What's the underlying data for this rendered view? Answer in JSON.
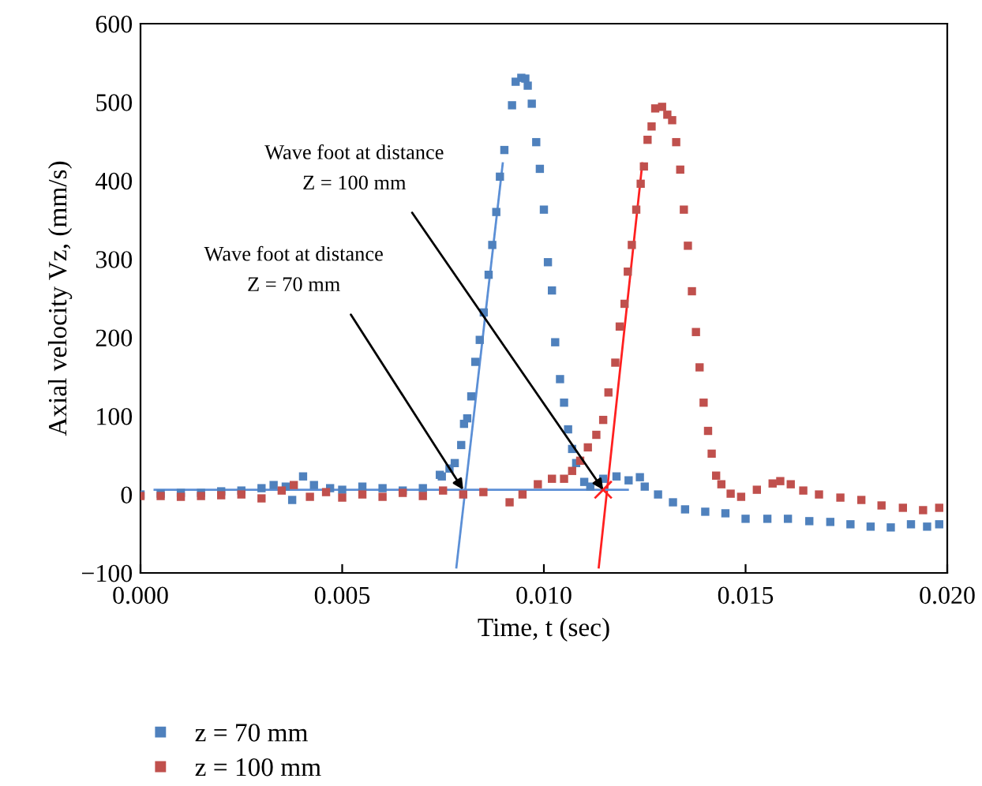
{
  "chart_data": {
    "type": "scatter",
    "xlabel": "Time, t (sec)",
    "ylabel": "Axial velocity Vz, (mm/s)",
    "xlim": [
      0,
      0.02
    ],
    "ylim": [
      -100,
      600
    ],
    "xticks": [
      {
        "value": 0,
        "label": "0.000"
      },
      {
        "value": 0.005,
        "label": "0.005"
      },
      {
        "value": 0.01,
        "label": "0.010"
      },
      {
        "value": 0.015,
        "label": "0.015"
      },
      {
        "value": 0.02,
        "label": "0.020"
      }
    ],
    "yticks": [
      {
        "value": -100,
        "label": "−100"
      },
      0,
      100,
      200,
      300,
      400,
      500,
      600
    ],
    "grid": false,
    "legend": "bottom left",
    "marker": "square",
    "series": [
      {
        "name": "z = 70 mm",
        "color": "#4f81bd",
        "x": [
          0.0,
          0.0005,
          0.001,
          0.0015,
          0.002,
          0.0025,
          0.003,
          0.0033,
          0.0036,
          0.00376,
          0.00403,
          0.0043,
          0.0047,
          0.005,
          0.0055,
          0.006,
          0.0065,
          0.007,
          0.00742,
          0.00747,
          0.00766,
          0.00779,
          0.00795,
          0.00802,
          0.0081,
          0.0082,
          0.0083,
          0.00841,
          0.00851,
          0.00863,
          0.00872,
          0.00882,
          0.00891,
          0.00902,
          0.00921,
          0.0093,
          0.00944,
          0.00954,
          0.0096,
          0.0097,
          0.00981,
          0.0099,
          0.01,
          0.0101,
          0.0102,
          0.01028,
          0.0104,
          0.0105,
          0.0106,
          0.0107,
          0.0108,
          0.011,
          0.01115,
          0.01147,
          0.0118,
          0.0121,
          0.01238,
          0.0125,
          0.01283,
          0.0132,
          0.0135,
          0.014,
          0.0145,
          0.015,
          0.01554,
          0.01605,
          0.01658,
          0.0171,
          0.0176,
          0.0181,
          0.0186,
          0.0191,
          0.0195,
          0.0198
        ],
        "values": [
          0,
          1,
          2,
          2,
          4,
          5,
          8,
          12,
          10,
          -7,
          23,
          12,
          8,
          6,
          10,
          8,
          5,
          8,
          25,
          23,
          33,
          40,
          63,
          90,
          97,
          125,
          169,
          197,
          232,
          280,
          318,
          360,
          405,
          439,
          496,
          526,
          531,
          530,
          521,
          498,
          449,
          415,
          363,
          296,
          260,
          194,
          147,
          117,
          83,
          58,
          40,
          16,
          10,
          20,
          23,
          18,
          22,
          10,
          0,
          -10,
          -19,
          -22,
          -24,
          -31,
          -31,
          -31,
          -34,
          -35,
          -38,
          -41,
          -42,
          -38,
          -41,
          -38
        ]
      },
      {
        "name": "z = 100 mm",
        "color": "#c0504d",
        "x": [
          0.0,
          0.0005,
          0.001,
          0.0015,
          0.002,
          0.0025,
          0.003,
          0.0035,
          0.0038,
          0.0042,
          0.0046,
          0.005,
          0.0055,
          0.006,
          0.0065,
          0.007,
          0.0075,
          0.008,
          0.0085,
          0.00915,
          0.00947,
          0.00985,
          0.0102,
          0.0105,
          0.0107,
          0.0109,
          0.01109,
          0.0113,
          0.01147,
          0.0116,
          0.01177,
          0.01188,
          0.012,
          0.01208,
          0.01218,
          0.01229,
          0.0124,
          0.01248,
          0.01257,
          0.01267,
          0.01276,
          0.01293,
          0.01306,
          0.01318,
          0.01328,
          0.01338,
          0.01347,
          0.01357,
          0.01367,
          0.01377,
          0.01386,
          0.01396,
          0.01407,
          0.01416,
          0.01427,
          0.0144,
          0.01463,
          0.01489,
          0.01528,
          0.01567,
          0.01586,
          0.01612,
          0.01643,
          0.01682,
          0.01735,
          0.01787,
          0.01837,
          0.0189,
          0.0194,
          0.0198
        ],
        "values": [
          -2,
          -2,
          -3,
          -2,
          -1,
          0,
          -5,
          5,
          12,
          -3,
          3,
          -4,
          0,
          -3,
          2,
          -2,
          5,
          0,
          3,
          -10,
          0,
          13,
          20,
          20,
          30,
          43,
          60,
          76,
          95,
          130,
          168,
          214,
          243,
          284,
          318,
          363,
          396,
          418,
          452,
          469,
          492,
          494,
          484,
          477,
          449,
          414,
          363,
          317,
          259,
          207,
          162,
          117,
          81,
          52,
          24,
          13,
          1,
          -3,
          6,
          14,
          17,
          13,
          5,
          0,
          -4,
          -7,
          -14,
          -17,
          -20,
          -17
        ]
      },
      {
        "type": "line",
        "color": "#5b8fd6",
        "marker": "none",
        "x": [
          0.00783,
          0.00898
        ],
        "values": [
          -93,
          422
        ]
      },
      {
        "type": "line",
        "color": "#ff2020",
        "marker": "none",
        "x": [
          0.01136,
          0.01244
        ],
        "values": [
          -93,
          422
        ]
      },
      {
        "type": "line",
        "color": "#5b8fd6",
        "marker": "none",
        "x": [
          0.00035,
          0.01208
        ],
        "values": [
          6,
          6
        ]
      },
      {
        "type": "scatter",
        "color": "#ff2020",
        "marker": "cross",
        "x": [
          0.01147
        ],
        "values": [
          6
        ]
      }
    ],
    "annotations": [
      {
        "text": "Wave foot at distance\nZ = 70 mm",
        "x": 0.008,
        "y": 6
      },
      {
        "text": "Wave foot at distance\nZ = 100 mm",
        "x": 0.01147,
        "y": 6
      }
    ]
  }
}
